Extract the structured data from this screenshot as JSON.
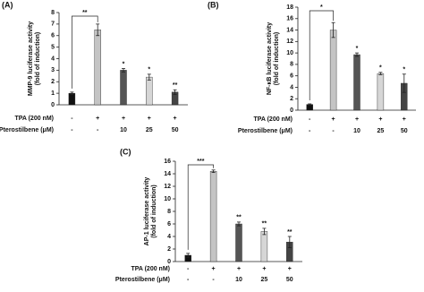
{
  "chart_data": [
    {
      "type": "bar",
      "panel_label": "(A)",
      "y_label": [
        "MMP-9 luciferase activity",
        "(fold of induction)"
      ],
      "row_labels": [
        {
          "name": "TPA (200 nM)",
          "labels": [
            "-",
            "+",
            "+",
            "+",
            "+"
          ]
        },
        {
          "name": "Pterostilbene (μM)",
          "labels": [
            "-",
            "-",
            "10",
            "25",
            "50"
          ]
        }
      ],
      "values": [
        1,
        6.5,
        3,
        2.4,
        1.1
      ],
      "errors": [
        0.1,
        0.5,
        0.15,
        0.25,
        0.2
      ],
      "colors": [
        "#111111",
        "#c4c4c4",
        "#555555",
        "#d6d6d6",
        "#444444"
      ],
      "significance": [
        null,
        null,
        "*",
        "*",
        "**"
      ],
      "bracket_label": "**",
      "ylim": [
        0,
        8
      ],
      "yticks": [
        0,
        1,
        2,
        3,
        4,
        5,
        6,
        7,
        8
      ]
    },
    {
      "type": "bar",
      "panel_label": "(B)",
      "y_label": [
        "NF-κB luciferase activity",
        "(fold of induction)"
      ],
      "row_labels": [
        {
          "name": "TPA (200 nM)",
          "labels": [
            "-",
            "+",
            "+",
            "+",
            "+"
          ]
        },
        {
          "name": "Pterostilbene (μM)",
          "labels": [
            "-",
            "-",
            "10",
            "25",
            "50"
          ]
        }
      ],
      "values": [
        1,
        14,
        9.7,
        6.4,
        4.7
      ],
      "errors": [
        0.1,
        1.3,
        0.3,
        0.2,
        1.6
      ],
      "colors": [
        "#111111",
        "#c4c4c4",
        "#555555",
        "#d6d6d6",
        "#444444"
      ],
      "significance": [
        null,
        null,
        "*",
        "*",
        "*"
      ],
      "bracket_label": "*",
      "ylim": [
        0,
        18
      ],
      "yticks": [
        0,
        2,
        4,
        6,
        8,
        10,
        12,
        14,
        16,
        18
      ]
    },
    {
      "type": "bar",
      "panel_label": "(C)",
      "y_label": [
        "AP-1 luciferase activity",
        "(fold of induction)"
      ],
      "row_labels": [
        {
          "name": "TPA (200 nM)",
          "labels": [
            "-",
            "+",
            "+",
            "+",
            "+"
          ]
        },
        {
          "name": "Pterostilbene (μM)",
          "labels": [
            "-",
            "-",
            "10",
            "25",
            "50"
          ]
        }
      ],
      "values": [
        1,
        14.4,
        6,
        4.8,
        3.1
      ],
      "errors": [
        0.3,
        0.2,
        0.3,
        0.5,
        0.9
      ],
      "colors": [
        "#111111",
        "#c4c4c4",
        "#555555",
        "#d6d6d6",
        "#444444"
      ],
      "significance": [
        null,
        null,
        "**",
        "**",
        "**"
      ],
      "bracket_label": "***",
      "ylim": [
        0,
        16
      ],
      "yticks": [
        0,
        2,
        4,
        6,
        8,
        10,
        12,
        14,
        16
      ]
    }
  ]
}
